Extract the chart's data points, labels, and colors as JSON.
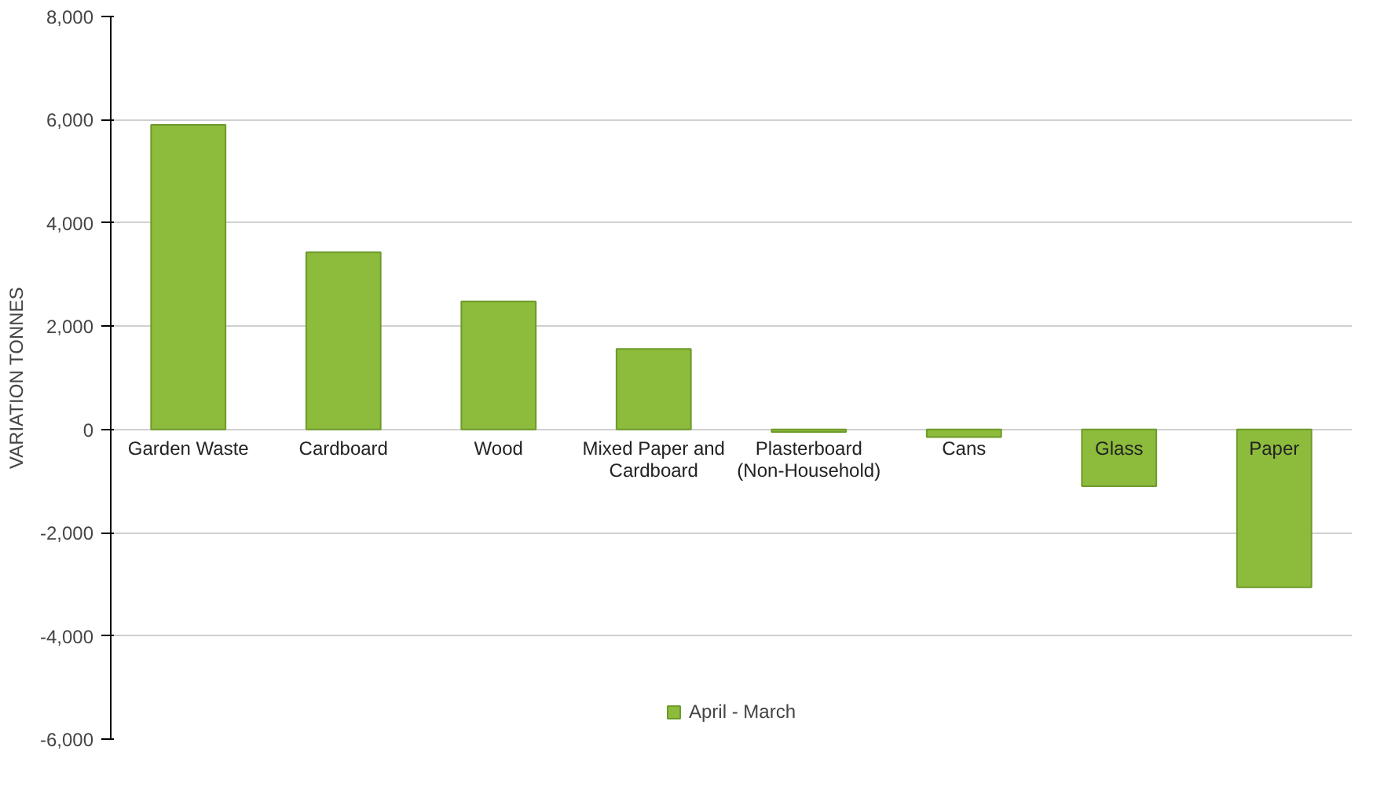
{
  "chart_data": {
    "type": "bar",
    "ylabel": "VARIATION TONNES",
    "categories": [
      "Garden Waste",
      "Cardboard",
      "Wood",
      "Mixed Paper and\nCardboard",
      "Plasterboard\n(Non-Household)",
      "Cans",
      "Glass",
      "Paper"
    ],
    "series": [
      {
        "name": "April - March",
        "color": "#8dbb3c",
        "values": [
          5900,
          3430,
          2480,
          1560,
          -50,
          -150,
          -1100,
          -3060
        ]
      }
    ],
    "ylim": [
      -6000,
      8000
    ],
    "yticks": [
      {
        "value": -6000,
        "label": "-6,000"
      },
      {
        "value": -4000,
        "label": "-4,000"
      },
      {
        "value": -2000,
        "label": "-2,000"
      },
      0,
      {
        "value": 2000,
        "label": "2,000"
      },
      {
        "value": 4000,
        "label": "4,000"
      },
      {
        "value": 6000,
        "label": "6,000"
      },
      {
        "value": 8000,
        "label": "8,000"
      }
    ],
    "grid": "y",
    "legend": "bottom"
  }
}
